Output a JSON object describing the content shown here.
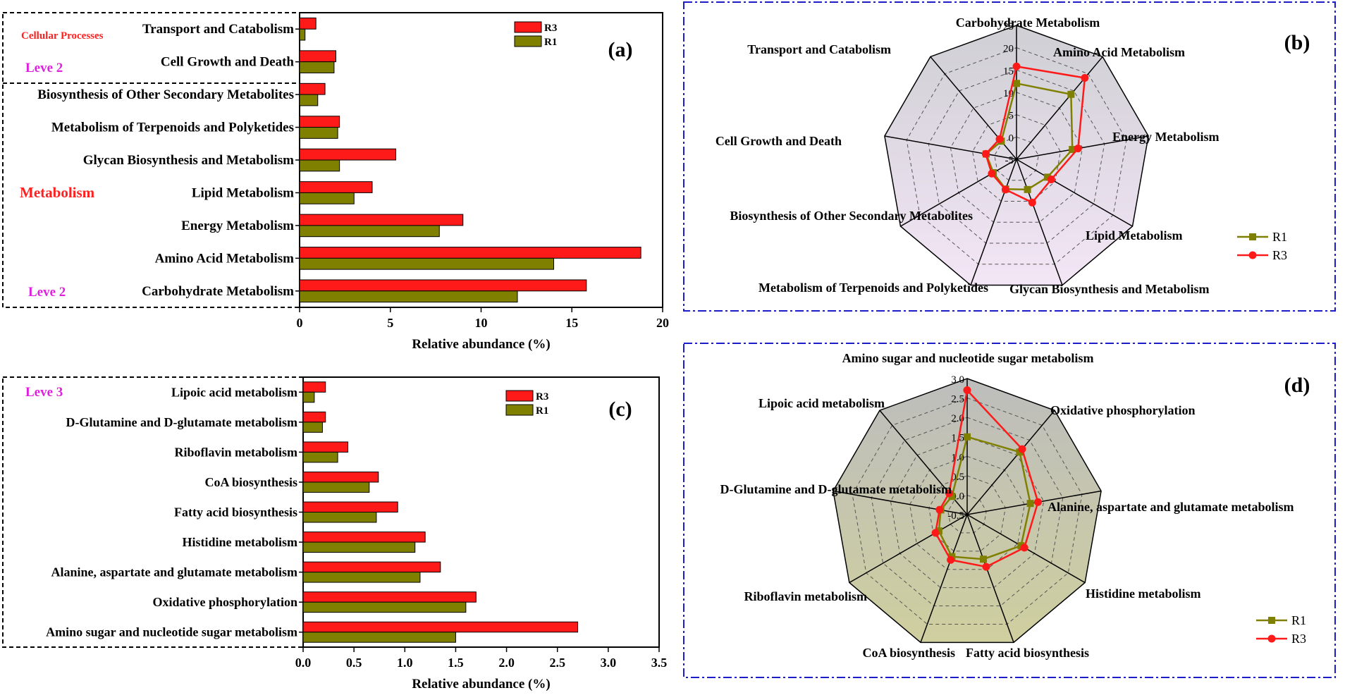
{
  "colors": {
    "r3": "#ff1a1a",
    "r1": "#808000",
    "radar_b_fill": "#f3e6f6",
    "radar_d_fill": "#cfcf9f",
    "frame_blue": "#1c1cc8",
    "magenta": "#e020e0",
    "red_text": "#ff2020"
  },
  "chart_data": [
    {
      "id": "a",
      "type": "bar",
      "orientation": "horizontal",
      "panel_label": "(a)",
      "categories": [
        "Carbohydrate Metabolism",
        "Amino Acid Metabolism",
        "Energy Metabolism",
        "Lipid Metabolism",
        "Glycan Biosynthesis and Metabolism",
        "Metabolism of Terpenoids and Polyketides",
        "Biosynthesis of Other Secondary Metabolites",
        "Cell Growth and Death",
        "Transport and Catabolism"
      ],
      "series": [
        {
          "name": "R3",
          "values": [
            15.8,
            18.8,
            9.0,
            4.0,
            5.3,
            2.2,
            1.4,
            2.0,
            0.9
          ]
        },
        {
          "name": "R1",
          "values": [
            12.0,
            14.0,
            7.7,
            3.0,
            2.2,
            2.1,
            1.0,
            1.9,
            0.3
          ]
        }
      ],
      "xlabel": "Relative abundance (%)",
      "xlim": [
        0,
        20
      ],
      "xticks": [
        0,
        5,
        10,
        15,
        20
      ],
      "group_labels": {
        "level2_top": "Leve 2",
        "cellular": "Cellular Processes",
        "metabolism": "Metabolism",
        "level2_bottom": "Leve 2"
      },
      "legend": [
        "R3",
        "R1"
      ]
    },
    {
      "id": "b",
      "type": "radar",
      "panel_label": "(b)",
      "axes": [
        "Carbohydrate Metabolism",
        "Amino Acid Metabolism",
        "Energy Metabolism",
        "Lipid Metabolism",
        "Glycan Biosynthesis and Metabolism",
        "Metabolism of Terpenoids and Polyketides",
        "Biosynthesis of Other Secondary Metabolites",
        "Cell Growth and Death",
        "Transport and Catabolism"
      ],
      "rlim": [
        -5,
        25
      ],
      "rticks": [
        -5,
        0,
        5,
        10,
        15,
        20,
        25
      ],
      "series": [
        {
          "name": "R1",
          "values": [
            12.0,
            14.0,
            7.7,
            3.0,
            2.2,
            2.1,
            1.0,
            1.9,
            0.3
          ]
        },
        {
          "name": "R3",
          "values": [
            15.8,
            18.8,
            9.0,
            4.0,
            5.3,
            2.2,
            1.4,
            2.0,
            0.9
          ]
        }
      ],
      "legend": [
        "R1",
        "R3"
      ]
    },
    {
      "id": "c",
      "type": "bar",
      "orientation": "horizontal",
      "panel_label": "(c)",
      "categories": [
        "Amino sugar and nucleotide sugar metabolism",
        "Oxidative phosphorylation",
        "Alanine, aspartate and glutamate metabolism",
        "Histidine metabolism",
        "Fatty acid biosynthesis",
        "CoA biosynthesis",
        "Riboflavin metabolism",
        "D-Glutamine and D-glutamate metabolism",
        "Lipoic acid metabolism"
      ],
      "series": [
        {
          "name": "R3",
          "values": [
            2.7,
            1.7,
            1.35,
            1.2,
            0.93,
            0.74,
            0.44,
            0.22,
            0.22
          ]
        },
        {
          "name": "R1",
          "values": [
            1.5,
            1.6,
            1.15,
            1.1,
            0.72,
            0.65,
            0.34,
            0.19,
            0.11
          ]
        }
      ],
      "xlabel": "Relative abundance (%)",
      "xlim": [
        0,
        3.5
      ],
      "xticks": [
        0.0,
        0.5,
        1.0,
        1.5,
        2.0,
        2.5,
        3.0,
        3.5
      ],
      "group_labels": {
        "level3": "Leve 3"
      },
      "legend": [
        "R3",
        "R1"
      ]
    },
    {
      "id": "d",
      "type": "radar",
      "panel_label": "(d)",
      "axes": [
        "Amino sugar and nucleotide sugar metabolism",
        "Oxidative phosphorylation",
        "Alanine, aspartate and glutamate metabolism",
        "Histidine metabolism",
        "Fatty acid biosynthesis",
        "CoA biosynthesis",
        "Riboflavin metabolism",
        "D-Glutamine and D-glutamate metabolism",
        "Lipoic acid metabolism"
      ],
      "rlim": [
        -0.5,
        3.0
      ],
      "rticks": [
        -0.5,
        0.0,
        0.5,
        1.0,
        1.5,
        2.0,
        2.5,
        3.0
      ],
      "series": [
        {
          "name": "R1",
          "values": [
            1.5,
            1.6,
            1.15,
            1.1,
            0.72,
            0.65,
            0.34,
            0.19,
            0.11
          ]
        },
        {
          "name": "R3",
          "values": [
            2.7,
            1.7,
            1.35,
            1.2,
            0.93,
            0.74,
            0.44,
            0.22,
            0.22
          ]
        }
      ],
      "legend": [
        "R1",
        "R3"
      ]
    }
  ]
}
